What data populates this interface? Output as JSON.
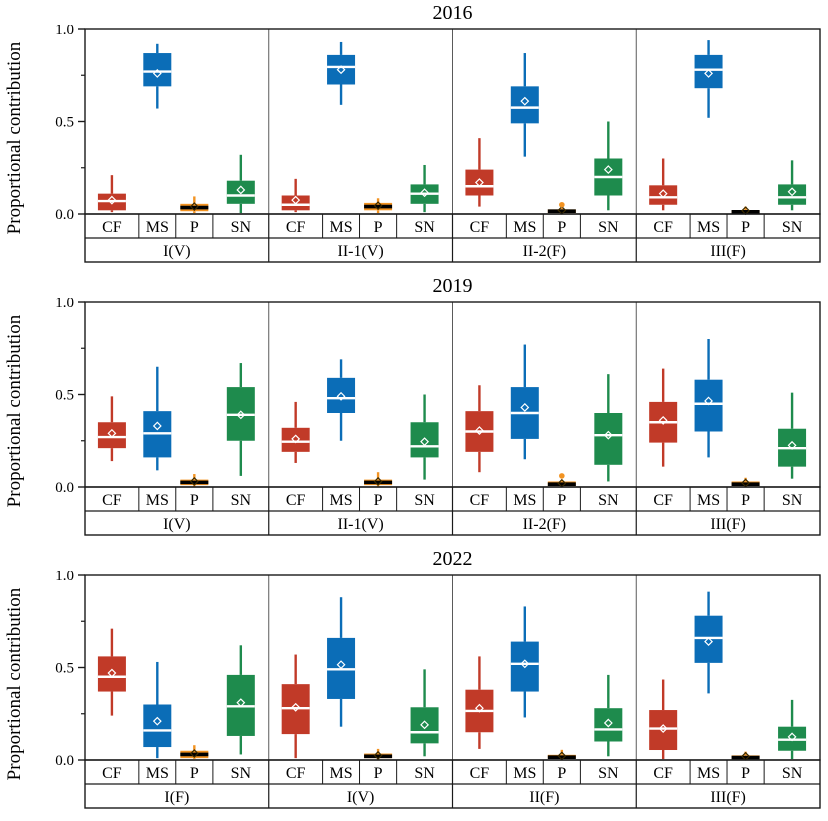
{
  "figure": {
    "ylabel": "Proportional contribution",
    "categories": [
      "CF",
      "MS",
      "P",
      "SN"
    ],
    "colors": {
      "CF": "#c13a28",
      "MS": "#0b6db7",
      "P": "#f29322",
      "SN": "#1e8b4d"
    },
    "median_colors": {
      "CF": "#ffffff",
      "MS": "#ffffff",
      "P": "#000000",
      "SN": "#ffffff"
    },
    "frame_color": "#1a1a1a",
    "separator_color": "#5a5a5a"
  },
  "chart_data": [
    {
      "type": "grouped_boxplot",
      "title": "2016",
      "ylabel": "Proportional contribution",
      "ylim": [
        0,
        1
      ],
      "yticks": [
        "0.0",
        "0.5",
        "1.0"
      ],
      "minor_yticks": [
        0.25,
        0.75
      ],
      "categories": [
        "CF",
        "MS",
        "P",
        "SN"
      ],
      "groups": [
        {
          "label": "I(V)",
          "boxes": [
            {
              "cat": "CF",
              "whislo": 0.01,
              "q1": 0.02,
              "med": 0.07,
              "q3": 0.11,
              "whishi": 0.21,
              "mean": 0.075,
              "outliers": []
            },
            {
              "cat": "MS",
              "whislo": 0.57,
              "q1": 0.69,
              "med": 0.77,
              "q3": 0.87,
              "whishi": 0.92,
              "mean": 0.76,
              "outliers": []
            },
            {
              "cat": "P",
              "whislo": 0.005,
              "q1": 0.015,
              "med": 0.035,
              "q3": 0.055,
              "whishi": 0.095,
              "mean": 0.04,
              "outliers": []
            },
            {
              "cat": "SN",
              "whislo": 0.005,
              "q1": 0.055,
              "med": 0.1,
              "q3": 0.18,
              "whishi": 0.32,
              "mean": 0.13,
              "outliers": []
            }
          ]
        },
        {
          "label": "II-1(V)",
          "boxes": [
            {
              "cat": "CF",
              "whislo": 0.01,
              "q1": 0.02,
              "med": 0.05,
              "q3": 0.1,
              "whishi": 0.19,
              "mean": 0.075,
              "outliers": []
            },
            {
              "cat": "MS",
              "whislo": 0.59,
              "q1": 0.7,
              "med": 0.795,
              "q3": 0.86,
              "whishi": 0.93,
              "mean": 0.78,
              "outliers": []
            },
            {
              "cat": "P",
              "whislo": 0.005,
              "q1": 0.02,
              "med": 0.04,
              "q3": 0.06,
              "whishi": 0.085,
              "mean": 0.045,
              "outliers": []
            },
            {
              "cat": "SN",
              "whislo": 0.01,
              "q1": 0.055,
              "med": 0.11,
              "q3": 0.16,
              "whishi": 0.265,
              "mean": 0.115,
              "outliers": []
            }
          ]
        },
        {
          "label": "II-2(F)",
          "boxes": [
            {
              "cat": "CF",
              "whislo": 0.04,
              "q1": 0.1,
              "med": 0.15,
              "q3": 0.24,
              "whishi": 0.41,
              "mean": 0.17,
              "outliers": []
            },
            {
              "cat": "MS",
              "whislo": 0.31,
              "q1": 0.49,
              "med": 0.575,
              "q3": 0.69,
              "whishi": 0.87,
              "mean": 0.61,
              "outliers": []
            },
            {
              "cat": "P",
              "whislo": 0.002,
              "q1": 0.005,
              "med": 0.015,
              "q3": 0.025,
              "whishi": 0.032,
              "mean": 0.02,
              "outliers": [
                0.05
              ]
            },
            {
              "cat": "SN",
              "whislo": 0.02,
              "q1": 0.1,
              "med": 0.2,
              "q3": 0.3,
              "whishi": 0.5,
              "mean": 0.24,
              "outliers": []
            }
          ]
        },
        {
          "label": "III(F)",
          "boxes": [
            {
              "cat": "CF",
              "whislo": 0.02,
              "q1": 0.05,
              "med": 0.09,
              "q3": 0.155,
              "whishi": 0.3,
              "mean": 0.11,
              "outliers": []
            },
            {
              "cat": "MS",
              "whislo": 0.52,
              "q1": 0.68,
              "med": 0.78,
              "q3": 0.86,
              "whishi": 0.94,
              "mean": 0.76,
              "outliers": []
            },
            {
              "cat": "P",
              "whislo": 0.002,
              "q1": 0.005,
              "med": 0.012,
              "q3": 0.02,
              "whishi": 0.04,
              "mean": 0.018,
              "outliers": []
            },
            {
              "cat": "SN",
              "whislo": 0.02,
              "q1": 0.05,
              "med": 0.09,
              "q3": 0.16,
              "whishi": 0.29,
              "mean": 0.12,
              "outliers": []
            }
          ]
        }
      ]
    },
    {
      "type": "grouped_boxplot",
      "title": "2019",
      "ylabel": "Proportional contribution",
      "ylim": [
        0,
        1
      ],
      "yticks": [
        "0.0",
        "0.5",
        "1.0"
      ],
      "minor_yticks": [
        0.25,
        0.75
      ],
      "categories": [
        "CF",
        "MS",
        "P",
        "SN"
      ],
      "groups": [
        {
          "label": "I(V)",
          "boxes": [
            {
              "cat": "CF",
              "whislo": 0.14,
              "q1": 0.21,
              "med": 0.27,
              "q3": 0.35,
              "whishi": 0.49,
              "mean": 0.29,
              "outliers": []
            },
            {
              "cat": "MS",
              "whislo": 0.09,
              "q1": 0.16,
              "med": 0.29,
              "q3": 0.41,
              "whishi": 0.65,
              "mean": 0.33,
              "outliers": []
            },
            {
              "cat": "P",
              "whislo": 0.003,
              "q1": 0.01,
              "med": 0.025,
              "q3": 0.04,
              "whishi": 0.07,
              "mean": 0.03,
              "outliers": []
            },
            {
              "cat": "SN",
              "whislo": 0.06,
              "q1": 0.25,
              "med": 0.39,
              "q3": 0.54,
              "whishi": 0.67,
              "mean": 0.39,
              "outliers": []
            }
          ]
        },
        {
          "label": "II-1(V)",
          "boxes": [
            {
              "cat": "CF",
              "whislo": 0.13,
              "q1": 0.19,
              "med": 0.245,
              "q3": 0.32,
              "whishi": 0.46,
              "mean": 0.26,
              "outliers": []
            },
            {
              "cat": "MS",
              "whislo": 0.25,
              "q1": 0.4,
              "med": 0.48,
              "q3": 0.59,
              "whishi": 0.69,
              "mean": 0.49,
              "outliers": []
            },
            {
              "cat": "P",
              "whislo": 0.003,
              "q1": 0.01,
              "med": 0.025,
              "q3": 0.04,
              "whishi": 0.08,
              "mean": 0.03,
              "outliers": []
            },
            {
              "cat": "SN",
              "whislo": 0.04,
              "q1": 0.16,
              "med": 0.22,
              "q3": 0.35,
              "whishi": 0.5,
              "mean": 0.245,
              "outliers": []
            }
          ]
        },
        {
          "label": "II-2(F)",
          "boxes": [
            {
              "cat": "CF",
              "whislo": 0.08,
              "q1": 0.19,
              "med": 0.3,
              "q3": 0.41,
              "whishi": 0.55,
              "mean": 0.305,
              "outliers": []
            },
            {
              "cat": "MS",
              "whislo": 0.15,
              "q1": 0.26,
              "med": 0.4,
              "q3": 0.54,
              "whishi": 0.77,
              "mean": 0.43,
              "outliers": []
            },
            {
              "cat": "P",
              "whislo": 0.002,
              "q1": 0.005,
              "med": 0.015,
              "q3": 0.03,
              "whishi": 0.038,
              "mean": 0.02,
              "outliers": [
                0.06
              ]
            },
            {
              "cat": "SN",
              "whislo": 0.03,
              "q1": 0.12,
              "med": 0.28,
              "q3": 0.4,
              "whishi": 0.61,
              "mean": 0.28,
              "outliers": []
            }
          ]
        },
        {
          "label": "III(F)",
          "boxes": [
            {
              "cat": "CF",
              "whislo": 0.11,
              "q1": 0.24,
              "med": 0.35,
              "q3": 0.46,
              "whishi": 0.64,
              "mean": 0.36,
              "outliers": []
            },
            {
              "cat": "MS",
              "whislo": 0.16,
              "q1": 0.3,
              "med": 0.45,
              "q3": 0.58,
              "whishi": 0.8,
              "mean": 0.465,
              "outliers": []
            },
            {
              "cat": "P",
              "whislo": 0.003,
              "q1": 0.005,
              "med": 0.015,
              "q3": 0.03,
              "whishi": 0.05,
              "mean": 0.022,
              "outliers": []
            },
            {
              "cat": "SN",
              "whislo": 0.045,
              "q1": 0.11,
              "med": 0.21,
              "q3": 0.315,
              "whishi": 0.51,
              "mean": 0.225,
              "outliers": []
            }
          ]
        }
      ]
    },
    {
      "type": "grouped_boxplot",
      "title": "2022",
      "ylabel": "Proportional contribution",
      "ylim": [
        0,
        1
      ],
      "yticks": [
        "0.0",
        "0.5",
        "1.0"
      ],
      "minor_yticks": [
        0.25,
        0.75
      ],
      "categories": [
        "CF",
        "MS",
        "P",
        "SN"
      ],
      "groups": [
        {
          "label": "I(F)",
          "boxes": [
            {
              "cat": "CF",
              "whislo": 0.24,
              "q1": 0.37,
              "med": 0.45,
              "q3": 0.56,
              "whishi": 0.71,
              "mean": 0.47,
              "outliers": []
            },
            {
              "cat": "MS",
              "whislo": 0.01,
              "q1": 0.07,
              "med": 0.16,
              "q3": 0.3,
              "whishi": 0.53,
              "mean": 0.21,
              "outliers": []
            },
            {
              "cat": "P",
              "whislo": 0.005,
              "q1": 0.01,
              "med": 0.03,
              "q3": 0.05,
              "whishi": 0.08,
              "mean": 0.035,
              "outliers": []
            },
            {
              "cat": "SN",
              "whislo": 0.03,
              "q1": 0.13,
              "med": 0.29,
              "q3": 0.46,
              "whishi": 0.62,
              "mean": 0.31,
              "outliers": []
            }
          ]
        },
        {
          "label": "I(V)",
          "boxes": [
            {
              "cat": "CF",
              "whislo": 0.01,
              "q1": 0.14,
              "med": 0.28,
              "q3": 0.41,
              "whishi": 0.57,
              "mean": 0.285,
              "outliers": []
            },
            {
              "cat": "MS",
              "whislo": 0.18,
              "q1": 0.33,
              "med": 0.49,
              "q3": 0.66,
              "whishi": 0.88,
              "mean": 0.515,
              "outliers": []
            },
            {
              "cat": "P",
              "whislo": 0.003,
              "q1": 0.01,
              "med": 0.02,
              "q3": 0.035,
              "whishi": 0.06,
              "mean": 0.025,
              "outliers": []
            },
            {
              "cat": "SN",
              "whislo": 0.02,
              "q1": 0.09,
              "med": 0.15,
              "q3": 0.285,
              "whishi": 0.49,
              "mean": 0.19,
              "outliers": []
            }
          ]
        },
        {
          "label": "II(F)",
          "boxes": [
            {
              "cat": "CF",
              "whislo": 0.06,
              "q1": 0.15,
              "med": 0.265,
              "q3": 0.38,
              "whishi": 0.56,
              "mean": 0.28,
              "outliers": []
            },
            {
              "cat": "MS",
              "whislo": 0.23,
              "q1": 0.37,
              "med": 0.52,
              "q3": 0.64,
              "whishi": 0.83,
              "mean": 0.52,
              "outliers": []
            },
            {
              "cat": "P",
              "whislo": 0.003,
              "q1": 0.008,
              "med": 0.015,
              "q3": 0.028,
              "whishi": 0.055,
              "mean": 0.022,
              "outliers": []
            },
            {
              "cat": "SN",
              "whislo": 0.02,
              "q1": 0.1,
              "med": 0.165,
              "q3": 0.28,
              "whishi": 0.46,
              "mean": 0.2,
              "outliers": []
            }
          ]
        },
        {
          "label": "III(F)",
          "boxes": [
            {
              "cat": "CF",
              "whislo": 0.005,
              "q1": 0.054,
              "med": 0.17,
              "q3": 0.27,
              "whishi": 0.435,
              "mean": 0.17,
              "outliers": []
            },
            {
              "cat": "MS",
              "whislo": 0.36,
              "q1": 0.525,
              "med": 0.66,
              "q3": 0.78,
              "whishi": 0.91,
              "mean": 0.64,
              "outliers": []
            },
            {
              "cat": "P",
              "whislo": 0.003,
              "q1": 0.005,
              "med": 0.013,
              "q3": 0.025,
              "whishi": 0.045,
              "mean": 0.02,
              "outliers": []
            },
            {
              "cat": "SN",
              "whislo": 0.005,
              "q1": 0.05,
              "med": 0.11,
              "q3": 0.18,
              "whishi": 0.325,
              "mean": 0.125,
              "outliers": []
            }
          ]
        }
      ]
    }
  ]
}
